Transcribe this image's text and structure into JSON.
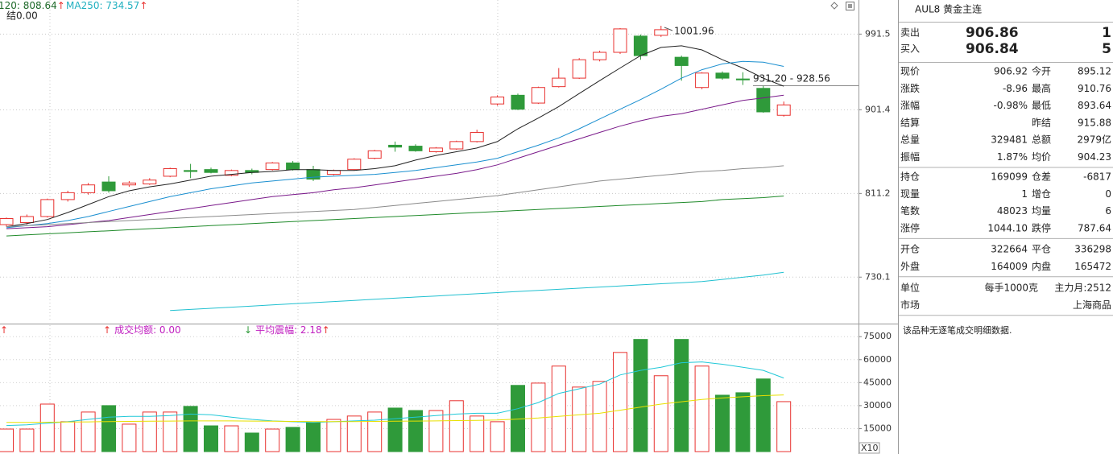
{
  "chart_data": [
    {
      "type": "candlestick",
      "open": [
        780,
        782,
        788,
        805,
        812,
        823,
        820,
        821,
        829,
        835,
        836,
        830,
        835,
        836,
        843,
        836,
        831,
        836,
        848,
        862,
        861,
        855,
        858,
        866,
        908,
        918,
        909,
        928,
        938,
        960,
        969,
        989,
        990,
        963,
        927,
        944,
        937,
        926,
        895.12
      ],
      "high": [
        787,
        790,
        806,
        814,
        822,
        829,
        824,
        827,
        838,
        842,
        838,
        836,
        837,
        844,
        845,
        840,
        836,
        848,
        857,
        866,
        863,
        860,
        867,
        879,
        918,
        920,
        928,
        950,
        962,
        971,
        999,
        991,
        1001.96,
        965,
        945,
        946,
        945,
        929,
        910.76
      ],
      "low": [
        778,
        780,
        787,
        803,
        810,
        812,
        818,
        820,
        828,
        827,
        832,
        829,
        831,
        835,
        835,
        824,
        830,
        835,
        847,
        855,
        855,
        854,
        857,
        865,
        906,
        901,
        908,
        927,
        937,
        958,
        967,
        960,
        988,
        935,
        925,
        936,
        930,
        898,
        893.64
      ],
      "close": [
        786,
        788,
        805,
        812,
        820,
        814,
        822,
        825,
        837,
        834,
        833,
        835,
        833,
        843,
        836,
        826,
        835,
        847,
        856,
        860,
        856,
        859,
        866,
        876,
        916,
        902,
        927,
        938,
        960,
        969,
        998,
        965,
        997,
        953,
        944,
        938,
        936,
        899,
        906.92
      ],
      "up_color": "#e8312f",
      "down_color": "#2f9a3a",
      "ylim": [
        690,
        1035
      ],
      "log_scale": true,
      "yticks": [
        730.1,
        811.2,
        901.4,
        991.5
      ],
      "grid": true,
      "lines": [
        {
          "color": "#222222",
          "values": [
            778,
            781,
            785,
            792,
            800,
            808,
            814,
            818,
            821,
            825,
            829,
            831,
            833,
            834,
            836,
            836,
            835,
            835,
            837,
            840,
            846,
            851,
            855,
            859,
            866,
            880,
            892,
            905,
            920,
            935,
            950,
            965,
            975,
            977,
            972,
            960,
            950,
            938,
            928.56
          ]
        },
        {
          "color": "#1a8fd0",
          "values": [
            777,
            779,
            781,
            784,
            788,
            793,
            798,
            803,
            808,
            812,
            816,
            819,
            822,
            824,
            826,
            828,
            829,
            830,
            831,
            833,
            835,
            838,
            841,
            844,
            848,
            855,
            862,
            870,
            880,
            891,
            902,
            913,
            925,
            938,
            948,
            955,
            958,
            957,
            952
          ]
        },
        {
          "color": "#7a1a8a",
          "values": [
            776,
            777,
            778,
            780,
            782,
            784,
            787,
            790,
            793,
            796,
            799,
            802,
            805,
            808,
            810,
            812,
            815,
            817,
            820,
            823,
            826,
            829,
            832,
            836,
            841,
            848,
            855,
            862,
            869,
            876,
            883,
            889,
            894,
            897,
            902,
            907,
            912,
            915,
            918
          ]
        },
        {
          "color": "#8a8a8a",
          "values": [
            778,
            779,
            780,
            781,
            782,
            783,
            784,
            785,
            786,
            787,
            788,
            789,
            790,
            791,
            792,
            793,
            794,
            795,
            797,
            799,
            801,
            803,
            805,
            807,
            809,
            812,
            815,
            818,
            821,
            824,
            826,
            828,
            830,
            832,
            834,
            835,
            837,
            838,
            840
          ]
        },
        {
          "color": "#1f8a2a",
          "values": [
            769,
            770,
            771,
            772,
            773,
            774,
            775,
            776,
            777,
            778,
            779,
            780,
            781,
            782,
            783,
            784,
            785,
            786,
            787,
            788,
            789,
            790,
            791,
            792,
            793,
            794,
            795,
            796,
            797,
            798,
            799,
            800,
            801,
            802,
            803,
            805,
            806,
            807,
            808.64
          ]
        },
        {
          "color": "#20c0d0",
          "values": [
            null,
            null,
            null,
            null,
            null,
            null,
            null,
            null,
            700,
            701,
            702,
            703,
            704,
            705,
            706,
            707,
            708,
            709,
            710,
            711,
            712,
            713,
            714,
            715,
            716,
            717,
            718,
            719,
            720,
            721,
            722,
            723,
            724,
            725,
            726,
            728,
            730,
            732,
            734.57
          ]
        }
      ],
      "legend": [
        {
          "text": "120: 808.64",
          "color": "#1f6a2a",
          "arrow": "↑",
          "arrow_color": "#e8312f"
        },
        {
          "text": "MA250: 734.57",
          "color": "#20b0c0",
          "arrow": "↑",
          "arrow_color": "#e8312f"
        }
      ],
      "sub_legend": "结0.00",
      "annotations": [
        {
          "text": "1001.96"
        },
        {
          "text": "931.20 - 928.56"
        }
      ]
    },
    {
      "type": "bar",
      "values": [
        14700,
        14700,
        31000,
        19500,
        25800,
        30000,
        17900,
        25800,
        25800,
        29500,
        16800,
        16800,
        12100,
        14700,
        15800,
        18900,
        21000,
        23200,
        25800,
        28400,
        26800,
        26800,
        33200,
        23200,
        19500,
        43200,
        44700,
        55800,
        42100,
        45800,
        64700,
        73200,
        49500,
        73200,
        55800,
        36800,
        38400,
        47400,
        32600
      ],
      "ylim": [
        0,
        83000
      ],
      "yticks": [
        15000,
        30000,
        45000,
        60000,
        75000
      ],
      "grid": true,
      "lines": [
        {
          "color": "#20c8d8",
          "values": [
            17000,
            17500,
            18500,
            19500,
            21000,
            22500,
            23000,
            23000,
            23500,
            24500,
            24000,
            22500,
            21000,
            20000,
            19500,
            19000,
            19500,
            20000,
            20500,
            21500,
            22500,
            23500,
            24500,
            25000,
            25000,
            28000,
            32000,
            38000,
            41000,
            44000,
            50000,
            53000,
            55000,
            58000,
            58500,
            57000,
            55000,
            53000,
            48000
          ]
        },
        {
          "color": "#e8e000",
          "values": [
            19000,
            19000,
            19200,
            19300,
            19400,
            19600,
            19700,
            19800,
            19900,
            20000,
            20000,
            20000,
            19900,
            19800,
            19700,
            19600,
            19600,
            19600,
            19700,
            19800,
            19900,
            20000,
            20200,
            20400,
            20600,
            21200,
            21900,
            23000,
            24000,
            25000,
            27000,
            29000,
            31000,
            32500,
            34000,
            35000,
            35800,
            36500,
            37000
          ]
        }
      ],
      "legend": [
        {
          "arrow": "↑",
          "arrow_color": "#e8312f"
        },
        {
          "arrow": "↑",
          "arrow_color": "#e8312f",
          "text": "成交均额: 0.00",
          "color": "#c020c0"
        },
        {
          "arrow": "↓",
          "arrow_color": "#2f9a3a",
          "text": "平均震幅: 2.18",
          "color": "#c020c0",
          "trail": "↑",
          "trail_color": "#e8312f"
        }
      ],
      "unit_label": "X10"
    }
  ],
  "quote": {
    "title": "AUL8 黄金主连",
    "bid_ask_color": "#2f9a3a",
    "bid_ask": [
      {
        "label": "卖出",
        "price": "906.86",
        "volume": "1"
      },
      {
        "label": "买入",
        "price": "906.84",
        "volume": "5"
      }
    ],
    "groups": [
      [
        {
          "l1": "现价",
          "v1": "906.92",
          "c1": "#2f9a3a",
          "l2": "今开",
          "v2": "895.12",
          "c2": "#2f9a3a"
        },
        {
          "l1": "涨跌",
          "v1": "-8.96",
          "c1": "#2f9a3a",
          "l2": "最高",
          "v2": "910.76",
          "c2": "#e8312f"
        },
        {
          "l1": "涨幅",
          "v1": "-0.98%",
          "c1": "#2f9a3a",
          "l2": "最低",
          "v2": "893.64",
          "c2": "#2f9a3a"
        },
        {
          "l1": "结算",
          "l2": "昨结",
          "v2": "915.88",
          "c2": "#222222"
        },
        {
          "l1": "总量",
          "v1": "329481",
          "c1": "#222222",
          "l2": "总额",
          "v2": "2979亿",
          "c2": "#222222"
        },
        {
          "l1": "振幅",
          "v1": "1.87%",
          "c1": "#e8312f",
          "l2": "均价",
          "v2": "904.23",
          "c2": "#2f9a3a"
        }
      ],
      [
        {
          "l1": "持仓",
          "v1": "169099",
          "c1": "#222222",
          "l2": "仓差",
          "v2": "-6817",
          "c2": "#2f9a3a"
        },
        {
          "l1": "现量",
          "v1": "1",
          "c1": "#222222",
          "l2": "增仓",
          "v2": "0",
          "c2": "#222222"
        },
        {
          "l1": "笔数",
          "v1": "48023",
          "c1": "#e8312f",
          "l2": "均量",
          "v2": "6",
          "c2": "#e8312f"
        },
        {
          "l1": "涨停",
          "v1": "1044.10",
          "c1": "#e8312f",
          "l2": "跌停",
          "v2": "787.64",
          "c2": "#2f9a3a"
        }
      ],
      [
        {
          "l1": "开仓",
          "v1": "322664",
          "c1": "#222222",
          "l2": "平仓",
          "v2": "336298",
          "c2": "#222222"
        },
        {
          "l1": "外盘",
          "v1": "164009",
          "c1": "#e8312f",
          "l2": "内盘",
          "v2": "165472",
          "c2": "#2f9a3a"
        }
      ],
      [
        {
          "l1": "单位",
          "v1": "每手1000克",
          "c1": "#222222",
          "v2": "主力月:2512",
          "c2": "#222222"
        },
        {
          "l1": "市场",
          "v2": "上海商品",
          "c2": "#222222"
        }
      ]
    ],
    "note": "该品种无逐笔成交明细数据."
  }
}
